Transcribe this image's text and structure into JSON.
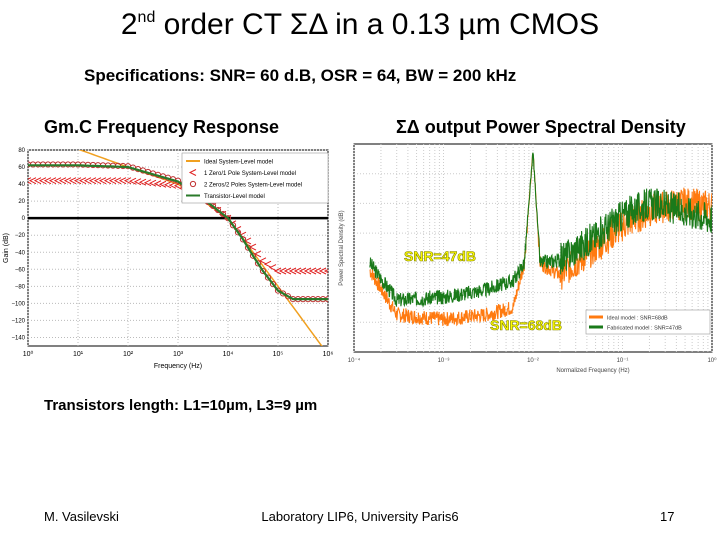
{
  "slide": {
    "title_prefix": "2",
    "title_sup": "nd",
    "title_rest": " order CT ΣΔ in a 0.13 µm CMOS",
    "specs": "Specifications: SNR= 60 d.B, OSR = 64, BW = 200 kHz",
    "left_heading": "Gm.C Frequency Response",
    "right_heading": "ΣΔ output Power Spectral Density",
    "transistors_note": "Transistors length: L1=10µm, L3=9 µm",
    "author": "M. Vasilevski",
    "lab": "Laboratory LIP6, University Paris6",
    "page": "17"
  },
  "chart_data": [
    {
      "type": "line",
      "xscale": "log",
      "xlim": [
        1,
        1000000
      ],
      "ylim": [
        -150,
        80
      ],
      "xlabel": "Frequency (Hz)",
      "ylabel": "Gain (dB)",
      "xticks": [
        "10⁰",
        "10¹",
        "10²",
        "10³",
        "10⁴",
        "10⁵",
        "10⁶"
      ],
      "yticks": [
        "80",
        "60",
        "40",
        "20",
        "0",
        "−20",
        "−40",
        "−60",
        "−80",
        "−100",
        "−120",
        "−140"
      ],
      "legend_position": "top-right",
      "colors": {
        "ideal": "#f0a020",
        "one_zero": "#e02020",
        "two_zeros": "#c03030",
        "transistor": "#2a7a2a",
        "zero_line": "#000000"
      },
      "series": [
        {
          "name": "Ideal System-Level model",
          "marker": "none",
          "x": [
            1,
            10,
            100,
            1000,
            10000,
            100000,
            1000000
          ],
          "y": [
            98,
            81,
            60,
            40,
            0,
            -80,
            -160
          ]
        },
        {
          "name": "1 Zero/1 Pole System-Level model",
          "marker": "<",
          "x": [
            1,
            10,
            100,
            1000,
            3000,
            10000,
            20000,
            30000,
            50000,
            100000,
            1000000
          ],
          "y": [
            44,
            44,
            44,
            38,
            24,
            0,
            -20,
            -32,
            -50,
            -62,
            -62
          ]
        },
        {
          "name": "2 Zeros/2 Poles System-Level model",
          "marker": "o",
          "x": [
            1,
            10,
            100,
            1000,
            3000,
            10000,
            20000,
            30000,
            50000,
            100000,
            200000,
            1000000
          ],
          "y": [
            63,
            63,
            61,
            44,
            25,
            0,
            -25,
            -42,
            -62,
            -85,
            -95,
            -95
          ]
        },
        {
          "name": "Transistor-Level model",
          "marker": "none",
          "x": [
            1,
            10,
            100,
            1000,
            3000,
            10000,
            20000,
            30000,
            50000,
            100000,
            200000,
            1000000
          ],
          "y": [
            62,
            62,
            60,
            43,
            24,
            0,
            -25,
            -42,
            -62,
            -85,
            -95,
            -95
          ]
        }
      ]
    },
    {
      "type": "line",
      "xscale": "log",
      "xlim": [
        0.0001,
        1
      ],
      "ylim": [
        -140,
        0
      ],
      "xlabel": "Normalized Frequency (Hz)",
      "ylabel": "Power Spectral Density (dB)",
      "xticks": [
        "10⁻⁴",
        "10⁻³",
        "10⁻²",
        "10⁻¹",
        "10⁰"
      ],
      "legend_position": "bottom-right",
      "annotations": [
        "SNR=47dB",
        "SNR=68dB"
      ],
      "colors": {
        "ideal": "#ff7a10",
        "fabricated": "#1a7a1a",
        "annotation_fill": "#ffff00",
        "annotation_stroke": "#808000"
      },
      "series": [
        {
          "name": "Ideal model : SNR=68dB",
          "x": [
            0.00015,
            0.0003,
            0.001,
            0.003,
            0.006,
            0.008,
            0.01,
            0.012,
            0.02,
            0.05,
            0.1,
            0.2,
            0.3,
            0.5,
            1
          ],
          "y": [
            -85,
            -115,
            -118,
            -115,
            -110,
            -80,
            -5,
            -80,
            -88,
            -70,
            -55,
            -45,
            -42,
            -40,
            -42
          ]
        },
        {
          "name": "Fabricated model : SNR=47dB",
          "x": [
            0.00015,
            0.0003,
            0.001,
            0.003,
            0.006,
            0.008,
            0.01,
            0.012,
            0.02,
            0.05,
            0.1,
            0.2,
            0.3,
            0.5,
            1
          ],
          "y": [
            -80,
            -105,
            -103,
            -98,
            -92,
            -80,
            -5,
            -80,
            -78,
            -62,
            -48,
            -40,
            -42,
            -45,
            -50
          ]
        }
      ]
    }
  ]
}
